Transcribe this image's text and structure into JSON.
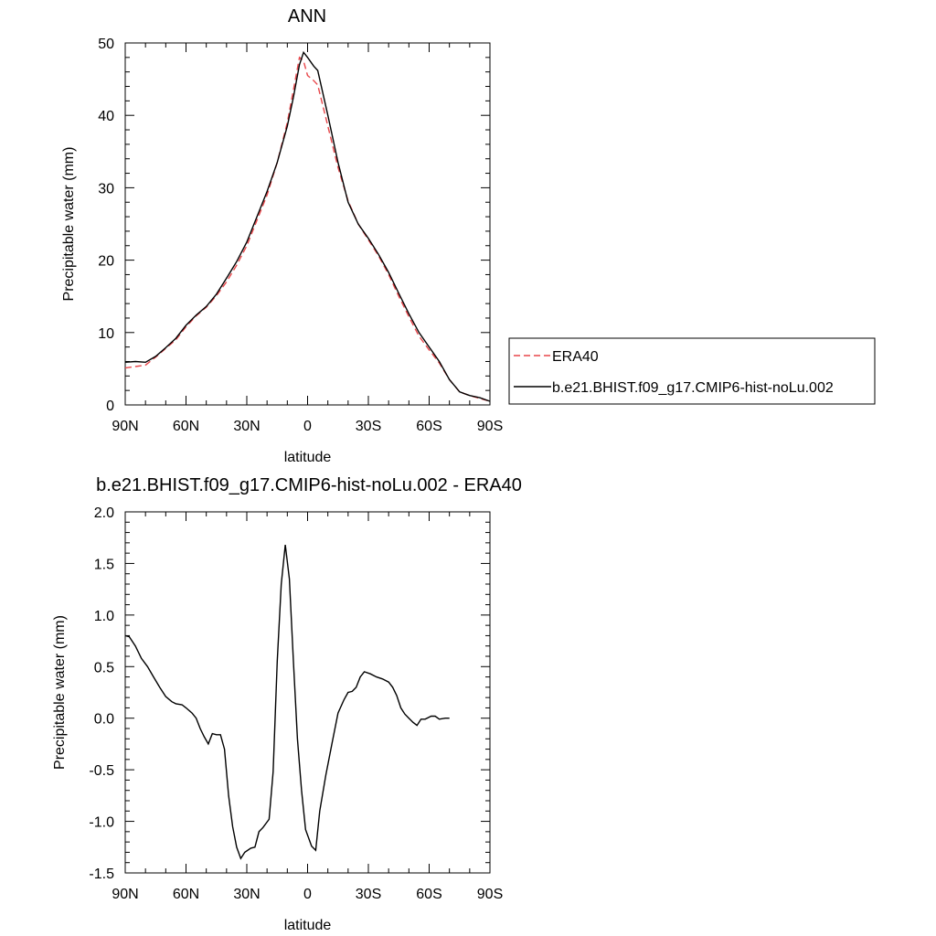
{
  "chart_data": [
    {
      "type": "line",
      "title": "ANN",
      "xlabel": "latitude",
      "ylabel": "Precipitable water (mm)",
      "xlim": [
        90,
        -90
      ],
      "ylim": [
        0,
        50
      ],
      "x_ticks": [
        {
          "value": 90,
          "label": "90N"
        },
        {
          "value": 60,
          "label": "60N"
        },
        {
          "value": 30,
          "label": "30N"
        },
        {
          "value": 0,
          "label": "0"
        },
        {
          "value": -30,
          "label": "30S"
        },
        {
          "value": -60,
          "label": "60S"
        },
        {
          "value": -90,
          "label": "90S"
        }
      ],
      "y_ticks": [
        0,
        10,
        20,
        30,
        40,
        50
      ],
      "grid": false,
      "legend_position": "right",
      "series": [
        {
          "name": "ERA40",
          "color": "#e8464a",
          "dash": "dashed",
          "points": [
            [
              90,
              5.1
            ],
            [
              85,
              5.3
            ],
            [
              80,
              5.5
            ],
            [
              75,
              6.6
            ],
            [
              70,
              7.8
            ],
            [
              65,
              9.0
            ],
            [
              60,
              10.8
            ],
            [
              55,
              12.3
            ],
            [
              50,
              13.5
            ],
            [
              45,
              15.1
            ],
            [
              40,
              17.0
            ],
            [
              35,
              19.3
            ],
            [
              30,
              22.0
            ],
            [
              25,
              25.5
            ],
            [
              20,
              29.0
            ],
            [
              15,
              33.5
            ],
            [
              10,
              39.0
            ],
            [
              7,
              43.5
            ],
            [
              4,
              48.0
            ],
            [
              2,
              47.5
            ],
            [
              0,
              45.5
            ],
            [
              -3,
              44.8
            ],
            [
              -5,
              44.2
            ],
            [
              -10,
              38.5
            ],
            [
              -15,
              32.8
            ],
            [
              -20,
              28.2
            ],
            [
              -25,
              25.0
            ],
            [
              -30,
              22.8
            ],
            [
              -35,
              20.6
            ],
            [
              -40,
              18.0
            ],
            [
              -45,
              15.0
            ],
            [
              -50,
              12.2
            ],
            [
              -55,
              9.5
            ],
            [
              -60,
              7.6
            ],
            [
              -65,
              5.8
            ],
            [
              -70,
              3.5
            ],
            [
              -73,
              2.5
            ],
            [
              -75,
              1.8
            ],
            [
              -80,
              1.3
            ],
            [
              -85,
              0.9
            ],
            [
              -90,
              0.5
            ]
          ]
        },
        {
          "name": "b.e21.BHIST.f09_g17.CMIP6-hist-noLu.002",
          "color": "#000000",
          "dash": "solid",
          "points": [
            [
              90,
              5.9
            ],
            [
              85,
              6.0
            ],
            [
              80,
              5.9
            ],
            [
              75,
              6.7
            ],
            [
              70,
              7.9
            ],
            [
              65,
              9.2
            ],
            [
              60,
              11.0
            ],
            [
              55,
              12.4
            ],
            [
              50,
              13.6
            ],
            [
              45,
              15.3
            ],
            [
              40,
              17.5
            ],
            [
              35,
              19.8
            ],
            [
              30,
              22.5
            ],
            [
              25,
              26.0
            ],
            [
              20,
              29.5
            ],
            [
              15,
              33.5
            ],
            [
              10,
              38.5
            ],
            [
              7,
              42.5
            ],
            [
              4,
              47.0
            ],
            [
              2,
              48.7
            ],
            [
              0,
              48.0
            ],
            [
              -3,
              46.8
            ],
            [
              -5,
              46.2
            ],
            [
              -10,
              40.0
            ],
            [
              -15,
              33.5
            ],
            [
              -20,
              28.0
            ],
            [
              -25,
              25.0
            ],
            [
              -30,
              23.0
            ],
            [
              -35,
              20.8
            ],
            [
              -40,
              18.3
            ],
            [
              -45,
              15.4
            ],
            [
              -50,
              12.6
            ],
            [
              -55,
              10.0
            ],
            [
              -60,
              8.0
            ],
            [
              -65,
              6.0
            ],
            [
              -70,
              3.5
            ],
            [
              -73,
              2.5
            ],
            [
              -75,
              1.8
            ],
            [
              -80,
              1.3
            ],
            [
              -85,
              1.0
            ],
            [
              -90,
              0.5
            ]
          ]
        }
      ]
    },
    {
      "type": "line",
      "title": "b.e21.BHIST.f09_g17.CMIP6-hist-noLu.002 - ERA40",
      "xlabel": "latitude",
      "ylabel": "Precipitable water (mm)",
      "xlim": [
        90,
        -90
      ],
      "ylim": [
        -1.5,
        2.0
      ],
      "x_ticks": [
        {
          "value": 90,
          "label": "90N"
        },
        {
          "value": 60,
          "label": "60N"
        },
        {
          "value": 30,
          "label": "30N"
        },
        {
          "value": 0,
          "label": "0"
        },
        {
          "value": -30,
          "label": "30S"
        },
        {
          "value": -60,
          "label": "60S"
        },
        {
          "value": -90,
          "label": "90S"
        }
      ],
      "y_ticks": [
        {
          "value": 2.0,
          "label": "2.0"
        },
        {
          "value": 1.5,
          "label": "1.5"
        },
        {
          "value": 1.0,
          "label": "1.0"
        },
        {
          "value": 0.5,
          "label": "0.5"
        },
        {
          "value": 0.0,
          "label": "0.0"
        },
        {
          "value": -0.5,
          "label": "-0.5"
        },
        {
          "value": -1.0,
          "label": "-1.0"
        },
        {
          "value": -1.5,
          "label": "-1.5"
        }
      ],
      "grid": false,
      "series": [
        {
          "color": "#000000",
          "dash": "solid",
          "points": [
            [
              90,
              0.8
            ],
            [
              88,
              0.79
            ],
            [
              85,
              0.7
            ],
            [
              82,
              0.58
            ],
            [
              79,
              0.5
            ],
            [
              76,
              0.4
            ],
            [
              73,
              0.3
            ],
            [
              70,
              0.21
            ],
            [
              67,
              0.16
            ],
            [
              65,
              0.14
            ],
            [
              62,
              0.13
            ],
            [
              60,
              0.1
            ],
            [
              57,
              0.05
            ],
            [
              55,
              0.0
            ],
            [
              53,
              -0.1
            ],
            [
              51,
              -0.18
            ],
            [
              49,
              -0.25
            ],
            [
              47,
              -0.15
            ],
            [
              45,
              -0.16
            ],
            [
              43,
              -0.16
            ],
            [
              41,
              -0.3
            ],
            [
              39,
              -0.75
            ],
            [
              37,
              -1.05
            ],
            [
              35,
              -1.25
            ],
            [
              33,
              -1.36
            ],
            [
              31,
              -1.3
            ],
            [
              28,
              -1.26
            ],
            [
              26,
              -1.25
            ],
            [
              24,
              -1.1
            ],
            [
              22,
              -1.06
            ],
            [
              19,
              -0.98
            ],
            [
              17,
              -0.52
            ],
            [
              15,
              0.55
            ],
            [
              13,
              1.3
            ],
            [
              11,
              1.68
            ],
            [
              9,
              1.35
            ],
            [
              7,
              0.55
            ],
            [
              5,
              -0.2
            ],
            [
              3,
              -0.7
            ],
            [
              1,
              -1.08
            ],
            [
              -2,
              -1.24
            ],
            [
              -4,
              -1.28
            ],
            [
              -6,
              -0.9
            ],
            [
              -9,
              -0.55
            ],
            [
              -12,
              -0.25
            ],
            [
              -15,
              0.05
            ],
            [
              -18,
              0.18
            ],
            [
              -20,
              0.25
            ],
            [
              -22,
              0.26
            ],
            [
              -24,
              0.3
            ],
            [
              -26,
              0.4
            ],
            [
              -28,
              0.45
            ],
            [
              -31,
              0.43
            ],
            [
              -34,
              0.4
            ],
            [
              -37,
              0.38
            ],
            [
              -40,
              0.35
            ],
            [
              -42,
              0.3
            ],
            [
              -44,
              0.22
            ],
            [
              -46,
              0.1
            ],
            [
              -48,
              0.04
            ],
            [
              -50,
              0.0
            ],
            [
              -52,
              -0.04
            ],
            [
              -54,
              -0.07
            ],
            [
              -56,
              -0.01
            ],
            [
              -58,
              -0.01
            ],
            [
              -61,
              0.02
            ],
            [
              -63,
              0.02
            ],
            [
              -65,
              -0.01
            ],
            [
              -68,
              0.0
            ],
            [
              -70,
              0.0
            ]
          ]
        }
      ]
    }
  ]
}
